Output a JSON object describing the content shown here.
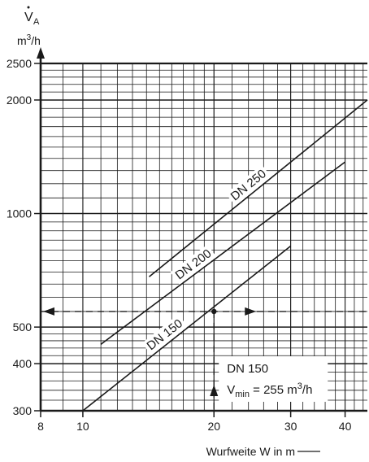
{
  "chart_data": {
    "type": "line",
    "title": "",
    "ylabel_symbol": "V",
    "ylabel_subscript": "A",
    "ylabel_unit_base": "m",
    "ylabel_unit_sup": "3",
    "ylabel_unit_rest": "/h",
    "xlabel": "Wurfweite W in m",
    "x_scale": "log",
    "y_scale": "log",
    "xlim": [
      8,
      45
    ],
    "ylim": [
      300,
      2500
    ],
    "x_ticks": [
      8,
      10,
      20,
      30,
      40
    ],
    "y_ticks": [
      300,
      400,
      500,
      1000,
      2000,
      2500
    ],
    "grid": true,
    "series": [
      {
        "name": "DN 150",
        "x": [
          10,
          30
        ],
        "y": [
          300,
          820
        ]
      },
      {
        "name": "DN 200",
        "x": [
          11,
          40
        ],
        "y": [
          450,
          1370
        ]
      },
      {
        "name": "DN 250",
        "x": [
          14.2,
          45
        ],
        "y": [
          680,
          2000
        ]
      }
    ],
    "example": {
      "x": 20,
      "y": 550,
      "annotation_title": "DN 150",
      "annotation_symbol": "V",
      "annotation_subscript": "min",
      "annotation_equals": " = 255 m",
      "annotation_sup": "3",
      "annotation_unit": "/h"
    },
    "colors": {
      "line": "#1a1a1a",
      "grid": "#1a1a1a",
      "background": "#ffffff"
    }
  }
}
